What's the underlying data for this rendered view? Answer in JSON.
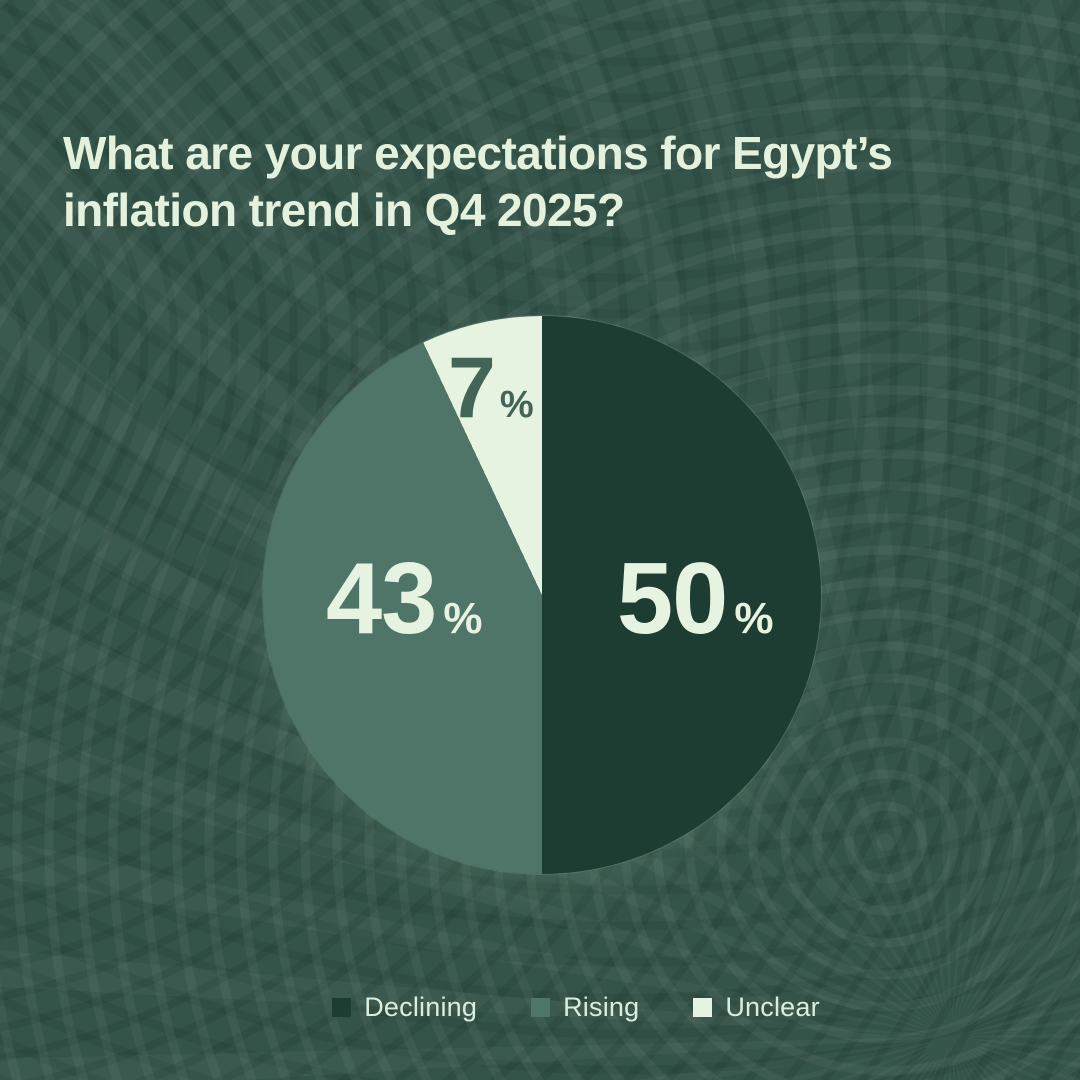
{
  "title": "What are your expectations for Egypt’s inflation trend in Q4 2025?",
  "colors": {
    "background": "#345349",
    "title_text": "#e3f1dd",
    "label_light": "#e7f3e1",
    "label_dark": "#426558",
    "legend_text": "#dbeedb"
  },
  "chart_data": {
    "type": "pie",
    "title": "What are your expectations for Egypt’s inflation trend in Q4 2025?",
    "categories": [
      "Declining",
      "Rising",
      "Unclear"
    ],
    "values": [
      50,
      43,
      7
    ],
    "unit": "%",
    "colors": [
      "#1d3c32",
      "#4f7569",
      "#e7f3e1"
    ],
    "start_angle_deg": 0,
    "direction": "clockwise",
    "legend_position": "bottom",
    "labels": [
      {
        "value": "50",
        "suffix": "%"
      },
      {
        "value": "43",
        "suffix": "%"
      },
      {
        "value": "7",
        "suffix": "%"
      }
    ]
  },
  "legend": {
    "items": [
      {
        "label": "Declining"
      },
      {
        "label": "Rising"
      },
      {
        "label": "Unclear"
      }
    ]
  }
}
